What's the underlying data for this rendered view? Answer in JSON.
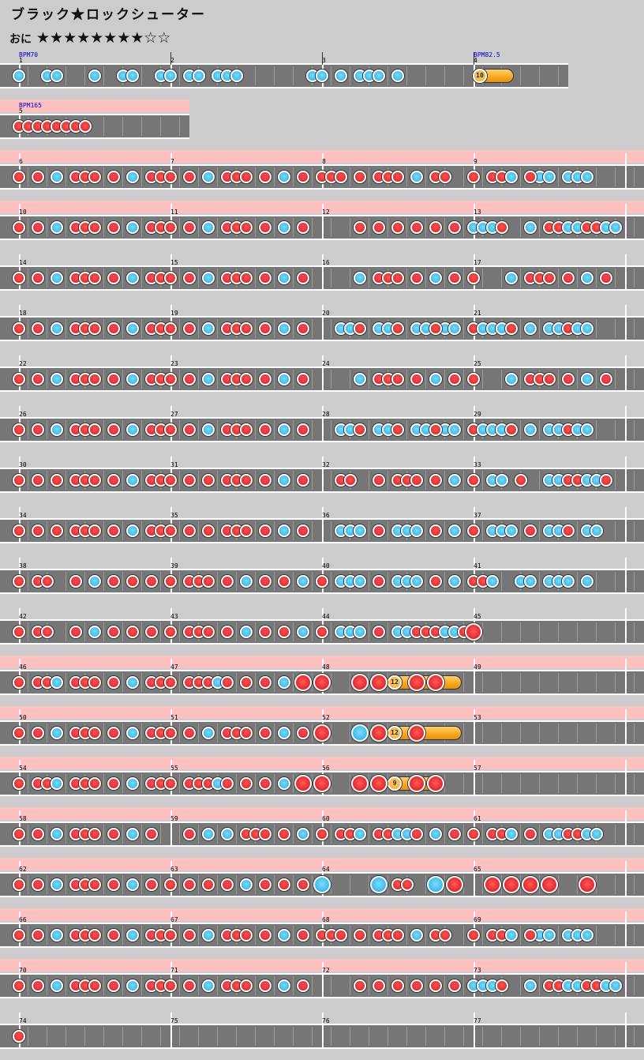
{
  "header": {
    "title": "ブラック★ロックシューター",
    "difficulty_label": "おに",
    "stars": "★★★★★★★★☆☆"
  },
  "colors": {
    "don": "#e83030",
    "ka": "#45bff0",
    "roll": "#f5a820",
    "band": "#ffc0c0",
    "lane": "#777777",
    "page": "#cccccc"
  },
  "score_rows": [
    {
      "measures": [
        1,
        2,
        3,
        4
      ],
      "band": "none",
      "width_measures": 4,
      "bpm": [
        {
          "measure": 1,
          "text": "BPM70"
        },
        {
          "measure": 4,
          "text": "BPM82.5"
        }
      ],
      "notes": [
        [
          0,
          0,
          "k"
        ],
        [
          0,
          3,
          "k"
        ],
        [
          0,
          4,
          "k"
        ],
        [
          0,
          8,
          "k"
        ],
        [
          0,
          11,
          "k"
        ],
        [
          0,
          12,
          "k"
        ],
        [
          1,
          -1,
          "k"
        ],
        [
          1,
          0,
          "k"
        ],
        [
          1,
          2,
          "k"
        ],
        [
          1,
          3,
          "k"
        ],
        [
          1,
          5,
          "k"
        ],
        [
          1,
          6,
          "k"
        ],
        [
          1,
          7,
          "k"
        ],
        [
          2,
          -1,
          "k"
        ],
        [
          2,
          0,
          "k"
        ],
        [
          2,
          2,
          "k"
        ],
        [
          2,
          4,
          "k"
        ],
        [
          2,
          5,
          "k"
        ],
        [
          2,
          6,
          "k"
        ],
        [
          2,
          8,
          "k"
        ]
      ],
      "rolls": [
        {
          "m": 3,
          "s": 0,
          "e": 3.5,
          "label": "10"
        }
      ]
    },
    {
      "measures": [
        5
      ],
      "band": "pink",
      "width_measures": 1.25,
      "bpm": [
        {
          "measure": 5,
          "text": "BPM165"
        }
      ],
      "notes": [
        [
          0,
          0,
          "d"
        ],
        [
          0,
          1,
          "d"
        ],
        [
          0,
          2,
          "d"
        ],
        [
          0,
          3,
          "d"
        ],
        [
          0,
          4,
          "d"
        ],
        [
          0,
          5,
          "d"
        ],
        [
          0,
          6,
          "d"
        ],
        [
          0,
          7,
          "d"
        ]
      ],
      "rolls": []
    },
    {
      "measures": [
        6,
        7,
        8,
        9
      ],
      "band": "pink",
      "bpm": [],
      "pattern": "A",
      "rolls": []
    },
    {
      "measures": [
        10,
        11,
        12,
        13
      ],
      "band": "pink",
      "bpm": [],
      "pattern": "B",
      "rolls": []
    },
    {
      "measures": [
        14,
        15,
        16,
        17
      ],
      "band": "none",
      "bpm": [],
      "pattern": "C",
      "rolls": []
    },
    {
      "measures": [
        18,
        19,
        20,
        21
      ],
      "band": "none",
      "bpm": [],
      "pattern": "D",
      "rolls": []
    },
    {
      "measures": [
        22,
        23,
        24,
        25
      ],
      "band": "none",
      "bpm": [],
      "pattern": "C",
      "rolls": []
    },
    {
      "measures": [
        26,
        27,
        28,
        29
      ],
      "band": "none",
      "bpm": [],
      "pattern": "D",
      "rolls": []
    },
    {
      "measures": [
        30,
        31,
        32,
        33
      ],
      "band": "none",
      "bpm": [],
      "pattern": "E",
      "rolls": []
    },
    {
      "measures": [
        34,
        35,
        36,
        37
      ],
      "band": "none",
      "bpm": [],
      "pattern": "F",
      "rolls": []
    },
    {
      "measures": [
        38,
        39,
        40,
        41
      ],
      "band": "none",
      "bpm": [],
      "pattern": "G",
      "rolls": []
    },
    {
      "measures": [
        42,
        43,
        44,
        45
      ],
      "band": "none",
      "bpm": [],
      "pattern": "H",
      "rolls": []
    },
    {
      "measures": [
        46,
        47,
        48,
        49
      ],
      "band": "pink",
      "bpm": [],
      "pattern": "I",
      "rolls": [
        {
          "m": 2,
          "s": 7,
          "e": 14,
          "label": "12"
        }
      ]
    },
    {
      "measures": [
        50,
        51,
        52,
        53
      ],
      "band": "pink",
      "bpm": [],
      "pattern": "J",
      "rolls": [
        {
          "m": 2,
          "s": 7,
          "e": 14,
          "label": "12"
        }
      ]
    },
    {
      "measures": [
        54,
        55,
        56,
        57
      ],
      "band": "pink",
      "bpm": [],
      "pattern": "K",
      "rolls": [
        {
          "m": 2,
          "s": 7,
          "e": 11.5,
          "label": "9"
        }
      ]
    },
    {
      "measures": [
        58,
        59,
        60,
        61
      ],
      "band": "pink",
      "bpm": [],
      "pattern": "L",
      "rolls": []
    },
    {
      "measures": [
        62,
        63,
        64,
        65
      ],
      "band": "pink",
      "bpm": [],
      "pattern": "M",
      "rolls": []
    },
    {
      "measures": [
        66,
        67,
        68,
        69
      ],
      "band": "pink",
      "bpm": [],
      "pattern": "A",
      "rolls": []
    },
    {
      "measures": [
        70,
        71,
        72,
        73
      ],
      "band": "pink",
      "bpm": [],
      "pattern": "B",
      "rolls": []
    },
    {
      "measures": [
        74,
        75,
        76,
        77
      ],
      "band": "none",
      "bpm": [],
      "pattern": "Z",
      "rolls": []
    }
  ]
}
